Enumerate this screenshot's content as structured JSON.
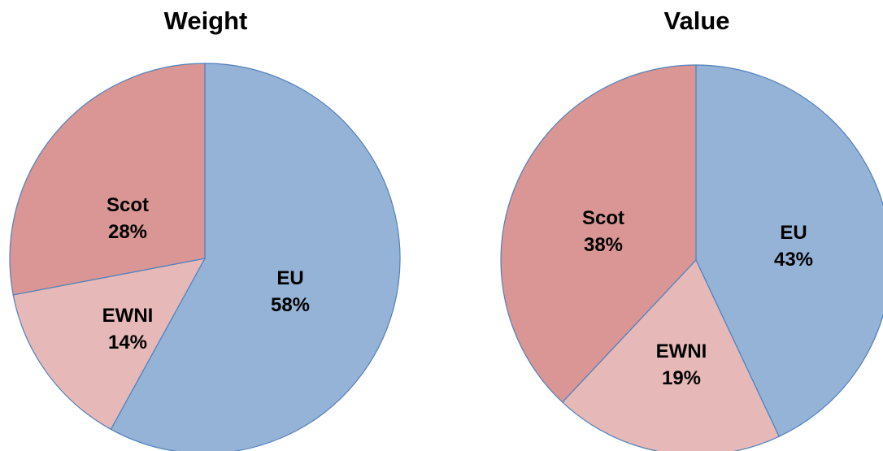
{
  "chart_data": [
    {
      "type": "pie",
      "title": "Weight",
      "slices": [
        {
          "label": "EU",
          "value": 58,
          "display": "58%",
          "color": "#95B3D7"
        },
        {
          "label": "EWNI",
          "value": 14,
          "display": "14%",
          "color": "#E6B9B8"
        },
        {
          "label": "Scot",
          "value": 28,
          "display": "28%",
          "color": "#D99694"
        }
      ]
    },
    {
      "type": "pie",
      "title": "Value",
      "slices": [
        {
          "label": "EU",
          "value": 43,
          "display": "43%",
          "color": "#95B3D7"
        },
        {
          "label": "EWNI",
          "value": 19,
          "display": "19%",
          "color": "#E6B9B8"
        },
        {
          "label": "Scot",
          "value": 38,
          "display": "38%",
          "color": "#D99694"
        }
      ]
    }
  ],
  "colors": {
    "stroke": "#4F81BD"
  }
}
